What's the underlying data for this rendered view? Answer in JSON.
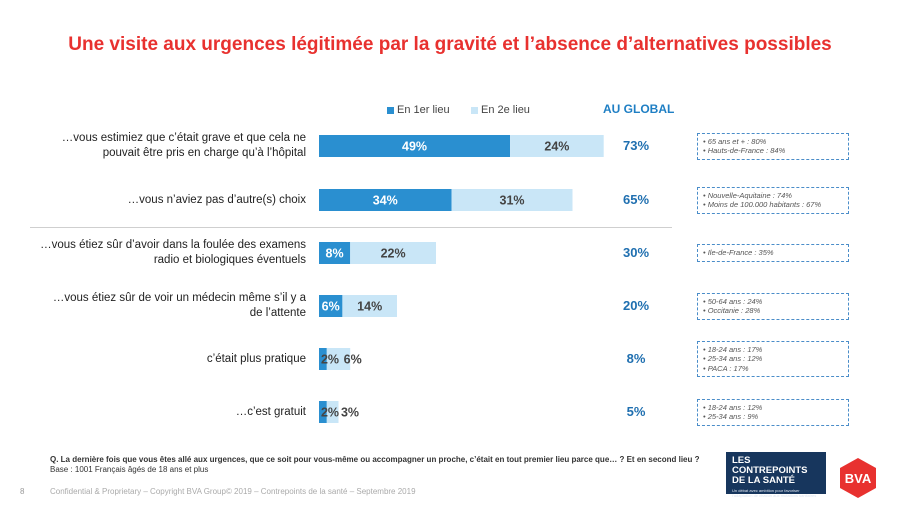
{
  "title": "Une visite aux urgences légitimée par la gravité et l’absence d’alternatives possibles",
  "legend": [
    {
      "label": "En 1er lieu",
      "color": "#2a8fd0"
    },
    {
      "label": "En 2e lieu",
      "color": "#c9e6f7"
    }
  ],
  "global_header": "AU GLOBAL",
  "notes": [
    [
      "• 65 ans et + : 80%",
      "• Hauts-de-France : 84%"
    ],
    [
      "• Nouvelle-Aquitaine : 74%",
      "• Moins de 100.000 habitants : 67%"
    ],
    [
      "• Ile-de-France : 35%"
    ],
    [
      "• 50-64 ans : 24%",
      "• Occitanie : 28%"
    ],
    [
      "• 18-24 ans : 17%",
      "• 25-34 ans : 12%",
      "• PACA : 17%"
    ],
    [
      "• 18-24 ans : 12%",
      "• 25-34 ans : 9%"
    ]
  ],
  "footnote": {
    "question": "Q. La dernière fois que vous êtes allé aux urgences, que ce soit pour vous-même ou accompagner un proche, c’était en tout premier lieu parce que… ? Et en second lieu ?",
    "base": "Base : 1001 Français âgés de 18 ans et plus"
  },
  "page_number": "8",
  "confidential": "Confidential & Proprietary – Copyright BVA Group© 2019 – Contrepoints de la santé – Septembre 2019",
  "logos": {
    "contrepoints_title": "LES CONTREPOINTS DE LA SANTÉ",
    "contrepoints_sub": "Un débat avec ambition pour favoriser l’adaptation de chacun aux mutations sanitaires",
    "bva": "BVA"
  },
  "colors": {
    "first": "#2a8fd0",
    "second": "#c9e6f7",
    "title": "#e8312f",
    "global": "#1f6fb0",
    "bva": "#e8312f"
  },
  "chart_data": {
    "type": "bar",
    "orientation": "horizontal",
    "stacked": true,
    "categories": [
      "…vous estimiez que c’était grave et que cela ne pouvait être pris en charge qu’à l’hôpital",
      "…vous n’aviez pas d’autre(s) choix",
      "…vous étiez sûr d’avoir dans la foulée des examens radio et biologiques éventuels",
      "…vous étiez sûr de voir un médecin même s’il y a de l’attente",
      "c’était plus pratique",
      "…c’est gratuit"
    ],
    "series": [
      {
        "name": "En 1er lieu",
        "values": [
          49,
          34,
          8,
          6,
          2,
          2
        ]
      },
      {
        "name": "En 2e lieu",
        "values": [
          24,
          31,
          22,
          14,
          6,
          3
        ]
      }
    ],
    "global": [
      73,
      65,
      30,
      20,
      8,
      5
    ],
    "unit": "%",
    "legend_position": "top"
  }
}
